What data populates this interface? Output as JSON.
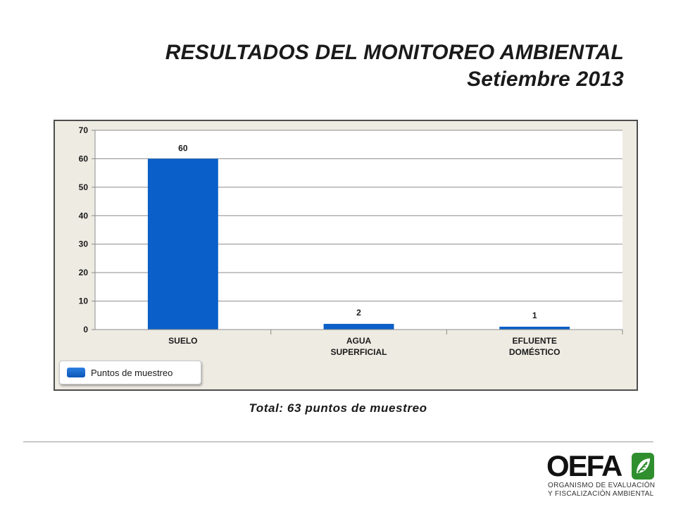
{
  "header": {
    "title": "RESULTADOS DEL MONITOREO AMBIENTAL",
    "subtitle": "Setiembre 2013"
  },
  "chart_data": {
    "type": "bar",
    "categories": [
      "SUELO",
      "AGUA\nSUPERFICIAL",
      "EFLUENTE\nDOMÉSTICO"
    ],
    "series": [
      {
        "name": "Puntos de muestreo",
        "values": [
          60,
          2,
          1
        ],
        "color": "#0a5fc8"
      }
    ],
    "data_labels": [
      "60",
      "2",
      "1"
    ],
    "ylim": [
      0,
      70
    ],
    "yticks": [
      0,
      10,
      20,
      30,
      40,
      50,
      60,
      70
    ],
    "grid": true,
    "legend_position": "bottom-left"
  },
  "caption": "Total: 63 puntos de muestreo",
  "logo": {
    "word": "OEFA",
    "line1": "ORGANISMO DE EVALUACIÓN",
    "line2": "Y FISCALIZACIÓN AMBIENTAL",
    "accent_color": "#2f8f2f"
  }
}
